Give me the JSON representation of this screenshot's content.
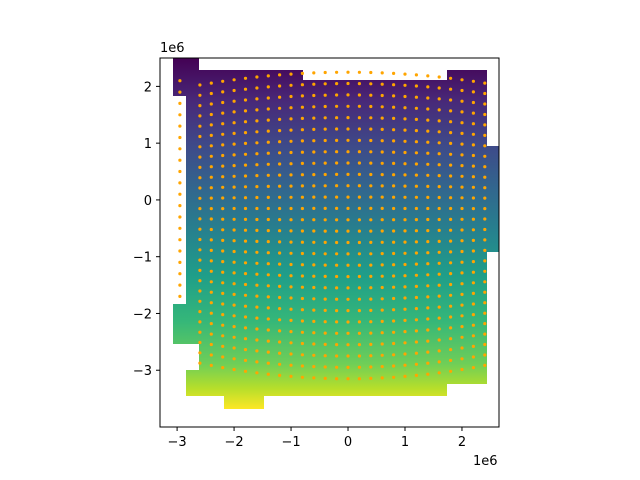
{
  "chart_data": {
    "type": "heatmap",
    "title": "",
    "xlabel": "",
    "ylabel": "",
    "xlim": [
      -3300000.0,
      2650000.0
    ],
    "ylim": [
      -4000000.0,
      2500000.0
    ],
    "x_ticks": [
      -3000000.0,
      -2000000.0,
      -1000000.0,
      0,
      1000000.0,
      2000000.0
    ],
    "x_tick_labels": [
      "−3",
      "−2",
      "−1",
      "0",
      "1",
      "2"
    ],
    "y_ticks": [
      -3000000.0,
      -2000000.0,
      -1000000.0,
      0,
      1000000.0,
      2000000.0
    ],
    "y_tick_labels": [
      "−3",
      "−2",
      "−1",
      "0",
      "1",
      "2"
    ],
    "x_offset_label": "1e6",
    "y_offset_label": "1e6",
    "colormap": "viridis",
    "color_gradient": "vertical: purple at top to yellow at bottom",
    "point_color": "#ffa500",
    "grid": false,
    "legend": "none",
    "point_series": {
      "description": "curved rows of orange scatter points over the mesh",
      "y_center_values": [
        2250000.0,
        2050000.0,
        1850000.0,
        1650000.0,
        1450000.0,
        1250000.0,
        1050000.0,
        850000.0,
        650000.0,
        450000.0,
        250000.0,
        50000.0,
        -150000.0,
        -350000.0,
        -550000.0,
        -750000.0,
        -950000.0,
        -1150000.0,
        -1350000.0,
        -1550000.0,
        -1750000.0,
        -1950000.0,
        -2150000.0,
        -2350000.0,
        -2550000.0,
        -2750000.0,
        -2950000.0,
        -3150000.0
      ],
      "x_values": [
        -2600000.0,
        -2400000.0,
        -2200000.0,
        -2000000.0,
        -1800000.0,
        -1600000.0,
        -1400000.0,
        -1200000.0,
        -1000000.0,
        -800000.0,
        -600000.0,
        -400000.0,
        -200000.0,
        0,
        200000.0,
        400000.0,
        600000.0,
        800000.0,
        1000000.0,
        1200000.0,
        1400000.0,
        1600000.0,
        1800000.0,
        2000000.0,
        2200000.0,
        2400000.0
      ]
    },
    "left_column_x": -2950000.0,
    "left_column_y_range": [
      -1700000.0,
      2100000.0
    ]
  }
}
